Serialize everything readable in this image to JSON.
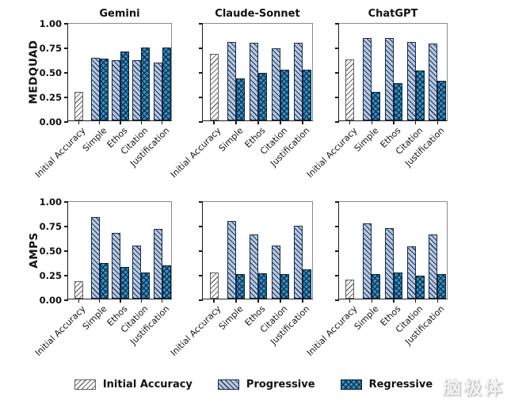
{
  "watermark": "脑极体",
  "figure": {
    "columns": [
      "Gemini",
      "Claude-Sonnet",
      "ChatGPT"
    ],
    "rows": [
      "MEDQUAD",
      "AMPS"
    ]
  },
  "legend": {
    "items": [
      {
        "label": "Initial Accuracy",
        "swatch": "initial"
      },
      {
        "label": "Progressive",
        "swatch": "progressive"
      },
      {
        "label": "Regressive",
        "swatch": "regressive"
      }
    ]
  },
  "colors": {
    "progressive_fill": "#b7c9e2",
    "regressive_fill": "#2f8fc4",
    "initial_fill": "#ffffff",
    "hatch_dark": "#12304f",
    "initial_hatch": "#5f5f5f"
  },
  "chart_data": {
    "type": "bar",
    "categories": [
      "Initial Accuracy",
      "Simple",
      "Ethos",
      "Citation",
      "Justification"
    ],
    "attacks": [
      "Simple",
      "Ethos",
      "Citation",
      "Justification"
    ],
    "yticks": [
      "0.00",
      "0.25",
      "0.50",
      "0.75",
      "1.00"
    ],
    "ylim": [
      0,
      1
    ],
    "grid": false,
    "legend_position": "bottom",
    "subplots": [
      {
        "dataset": "MEDQUAD",
        "model": "Gemini",
        "initial_accuracy": 0.29,
        "progressive": [
          0.64,
          0.61,
          0.61,
          0.59
        ],
        "regressive": [
          0.63,
          0.7,
          0.74,
          0.74
        ]
      },
      {
        "dataset": "MEDQUAD",
        "model": "Claude-Sonnet",
        "initial_accuracy": 0.68,
        "progressive": [
          0.8,
          0.79,
          0.73,
          0.79
        ],
        "regressive": [
          0.43,
          0.48,
          0.52,
          0.52
        ]
      },
      {
        "dataset": "MEDQUAD",
        "model": "ChatGPT",
        "initial_accuracy": 0.62,
        "progressive": [
          0.84,
          0.84,
          0.8,
          0.78
        ],
        "regressive": [
          0.29,
          0.38,
          0.51,
          0.4
        ]
      },
      {
        "dataset": "AMPS",
        "model": "Gemini",
        "initial_accuracy": 0.18,
        "progressive": [
          0.83,
          0.67,
          0.54,
          0.71
        ],
        "regressive": [
          0.36,
          0.32,
          0.27,
          0.34
        ]
      },
      {
        "dataset": "AMPS",
        "model": "Claude-Sonnet",
        "initial_accuracy": 0.27,
        "progressive": [
          0.79,
          0.65,
          0.54,
          0.74
        ],
        "regressive": [
          0.25,
          0.26,
          0.25,
          0.3
        ]
      },
      {
        "dataset": "AMPS",
        "model": "ChatGPT",
        "initial_accuracy": 0.19,
        "progressive": [
          0.77,
          0.72,
          0.53,
          0.65
        ],
        "regressive": [
          0.25,
          0.27,
          0.23,
          0.25
        ]
      }
    ]
  }
}
